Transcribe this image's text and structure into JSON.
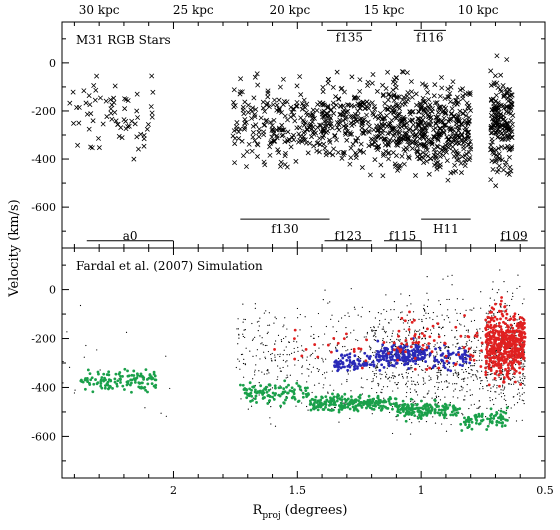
{
  "chart_data": [
    {
      "type": "scatter",
      "panel": "top",
      "title": "M31 RGB Stars",
      "xlabel_base": "R",
      "xlabel_sub": "proj",
      "xlabel_unit": "(degrees)",
      "ylabel": "Velocity (km/s)",
      "xlim": [
        2.45,
        0.5
      ],
      "ylim": [
        -770,
        170
      ],
      "x_ticks": [
        2,
        1.5,
        1,
        0.5
      ],
      "x_tick_labels": [
        "2",
        "1.5",
        "1",
        "0.5"
      ],
      "y_ticks": [
        -600,
        -400,
        -200,
        0
      ],
      "y_tick_labels": [
        "-600",
        "-400",
        "-200",
        "0"
      ],
      "top_axis_label_suffix": "kpc",
      "top_axis_ticks": [
        {
          "label": "30 kpc",
          "r": 2.3
        },
        {
          "label": "25 kpc",
          "r": 1.92
        },
        {
          "label": "20 kpc",
          "r": 1.53
        },
        {
          "label": "15 kpc",
          "r": 1.15
        },
        {
          "label": "10 kpc",
          "r": 0.77
        }
      ],
      "field_labels": [
        {
          "name": "a0",
          "x1": 2.35,
          "x2": 2.0,
          "y_line": -740,
          "y_text": -720
        },
        {
          "name": "f130",
          "x1": 1.73,
          "x2": 1.37,
          "y_line": -650,
          "y_text": -690
        },
        {
          "name": "f123",
          "x1": 1.39,
          "x2": 1.2,
          "y_line": -740,
          "y_text": -720
        },
        {
          "name": "f115",
          "x1": 1.15,
          "x2": 1.0,
          "y_line": -740,
          "y_text": -720
        },
        {
          "name": "H11",
          "x1": 1.0,
          "x2": 0.8,
          "y_line": -650,
          "y_text": -690
        },
        {
          "name": "f109",
          "x1": 0.68,
          "x2": 0.57,
          "y_line": -740,
          "y_text": -720
        },
        {
          "name": "f135",
          "x1": 1.38,
          "x2": 1.2,
          "y_line": 135,
          "y_text": 105
        },
        {
          "name": "f116",
          "x1": 1.03,
          "x2": 0.9,
          "y_line": 135,
          "y_text": 105
        }
      ],
      "series": [
        {
          "label": "RGB stars",
          "marker": "x",
          "color": "#000000",
          "clumps": [
            {
              "x": [
                2.42,
                2.08
              ],
              "y": [
                -470,
                10
              ],
              "n": 70
            },
            {
              "x": [
                1.76,
                1.55
              ],
              "y": [
                -500,
                20
              ],
              "n": 120
            },
            {
              "x": [
                1.55,
                1.38
              ],
              "y": [
                -500,
                -20
              ],
              "n": 110
            },
            {
              "x": [
                1.4,
                1.14
              ],
              "y": [
                -520,
                20
              ],
              "n": 230
            },
            {
              "x": [
                1.14,
                0.98
              ],
              "y": [
                -540,
                20
              ],
              "n": 230
            },
            {
              "x": [
                0.98,
                0.8
              ],
              "y": [
                -560,
                20
              ],
              "n": 260
            },
            {
              "x": [
                0.72,
                0.63
              ],
              "y": [
                -560,
                50
              ],
              "n": 190
            }
          ]
        }
      ]
    },
    {
      "type": "scatter",
      "panel": "bottom",
      "title": "Fardal et al. (2007) Simulation",
      "xlim": [
        2.45,
        0.5
      ],
      "ylim": [
        -770,
        170
      ],
      "y_ticks": [
        -600,
        -400,
        -200,
        0
      ],
      "y_tick_labels": [
        "-600",
        "-400",
        "-200",
        "0"
      ],
      "series": [
        {
          "label": "black particles",
          "marker": "dot",
          "color": "#000000",
          "clumps": [
            {
              "x": [
                2.45,
                2.0
              ],
              "y": [
                -640,
                -30
              ],
              "n": 20
            },
            {
              "x": [
                1.75,
                1.2
              ],
              "y": [
                -600,
                50
              ],
              "n": 320
            },
            {
              "x": [
                1.2,
                0.75
              ],
              "y": [
                -620,
                60
              ],
              "n": 700
            },
            {
              "x": [
                0.74,
                0.58
              ],
              "y": [
                -620,
                80
              ],
              "n": 420
            }
          ]
        },
        {
          "label": "green particles",
          "marker": "dot",
          "color": "#1aa04a",
          "clumps": [
            {
              "x": [
                2.38,
                2.07
              ],
              "y": [
                -430,
                -310
              ],
              "n": 130
            },
            {
              "x": [
                1.74,
                1.45
              ],
              "y": [
                -480,
                -360
              ],
              "n": 110
            },
            {
              "x": [
                1.45,
                1.1
              ],
              "y": [
                -510,
                -420
              ],
              "n": 220
            },
            {
              "x": [
                1.1,
                0.85
              ],
              "y": [
                -540,
                -440
              ],
              "n": 170
            },
            {
              "x": [
                0.85,
                0.65
              ],
              "y": [
                -590,
                -470
              ],
              "n": 80
            }
          ]
        },
        {
          "label": "blue particles",
          "marker": "dot",
          "color": "#2a2ab8",
          "clumps": [
            {
              "x": [
                1.35,
                1.18
              ],
              "y": [
                -340,
                -250
              ],
              "n": 80
            },
            {
              "x": [
                1.18,
                0.98
              ],
              "y": [
                -340,
                -200
              ],
              "n": 180
            },
            {
              "x": [
                0.98,
                0.8
              ],
              "y": [
                -340,
                -210
              ],
              "n": 60
            }
          ]
        },
        {
          "label": "red particles",
          "marker": "dot",
          "color": "#e02020",
          "clumps": [
            {
              "x": [
                1.6,
                1.1
              ],
              "y": [
                -360,
                -120
              ],
              "n": 25
            },
            {
              "x": [
                1.1,
                0.75
              ],
              "y": [
                -380,
                -60
              ],
              "n": 70
            },
            {
              "x": [
                0.74,
                0.58
              ],
              "y": [
                -420,
                -30
              ],
              "n": 520
            }
          ]
        }
      ]
    }
  ]
}
